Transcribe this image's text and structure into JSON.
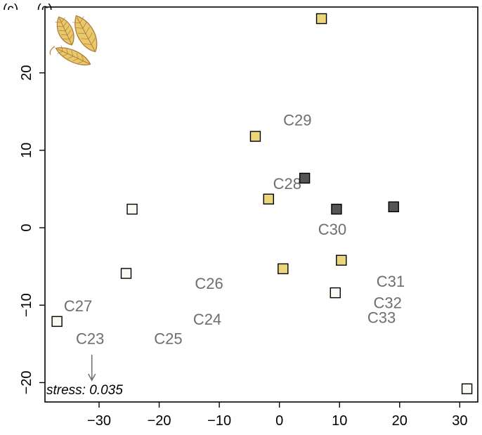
{
  "chart_data": {
    "type": "scatter",
    "panel_label_text": "(c) ... (c)",
    "xlim": [
      -39,
      33
    ],
    "ylim": [
      -22.5,
      28.5
    ],
    "x_ticks": [
      -30,
      -20,
      -10,
      0,
      10,
      20,
      30
    ],
    "y_ticks": [
      -20,
      -10,
      0,
      10,
      20
    ],
    "colors": {
      "yellow": "#EBD77A",
      "dark": "#555555",
      "white": "#FBFAF2",
      "label": "#6e6e6e",
      "leaf": "#E8C96A",
      "leaf_stroke": "#B07A3C"
    },
    "points": [
      {
        "x": 7.0,
        "y": 27.0,
        "fill": "yellow"
      },
      {
        "x": -4.0,
        "y": 11.8,
        "fill": "yellow"
      },
      {
        "x": 4.2,
        "y": 6.4,
        "fill": "dark"
      },
      {
        "x": -1.8,
        "y": 3.7,
        "fill": "yellow"
      },
      {
        "x": 9.5,
        "y": 2.4,
        "fill": "dark"
      },
      {
        "x": 19.0,
        "y": 2.7,
        "fill": "dark"
      },
      {
        "x": -24.5,
        "y": 2.4,
        "fill": "white"
      },
      {
        "x": -25.5,
        "y": -5.9,
        "fill": "white"
      },
      {
        "x": 0.6,
        "y": -5.3,
        "fill": "yellow"
      },
      {
        "x": 10.3,
        "y": -4.2,
        "fill": "yellow"
      },
      {
        "x": 9.3,
        "y": -8.4,
        "fill": "white"
      },
      {
        "x": -37.0,
        "y": -12.1,
        "fill": "white"
      },
      {
        "x": 31.2,
        "y": -20.8,
        "fill": "white"
      }
    ],
    "labels": [
      {
        "text": "C29",
        "x": 3.0,
        "y": 13.2
      },
      {
        "text": "C28",
        "x": 1.3,
        "y": 5.0
      },
      {
        "text": "C30",
        "x": 8.8,
        "y": -0.9
      },
      {
        "text": "C26",
        "x": -11.7,
        "y": -7.9
      },
      {
        "text": "C31",
        "x": 18.5,
        "y": -7.6
      },
      {
        "text": "C27",
        "x": -33.5,
        "y": -10.8
      },
      {
        "text": "C32",
        "x": 18.0,
        "y": -10.4
      },
      {
        "text": "C24",
        "x": -12.0,
        "y": -12.5
      },
      {
        "text": "C33",
        "x": 17.0,
        "y": -12.3
      },
      {
        "text": "C23",
        "x": -31.5,
        "y": -15.0
      },
      {
        "text": "C25",
        "x": -18.5,
        "y": -15.0
      }
    ],
    "arrow": {
      "x": -31.2,
      "y_from": -16.4,
      "y_to": -19.7
    },
    "stress_label": "stress: 0.035"
  }
}
